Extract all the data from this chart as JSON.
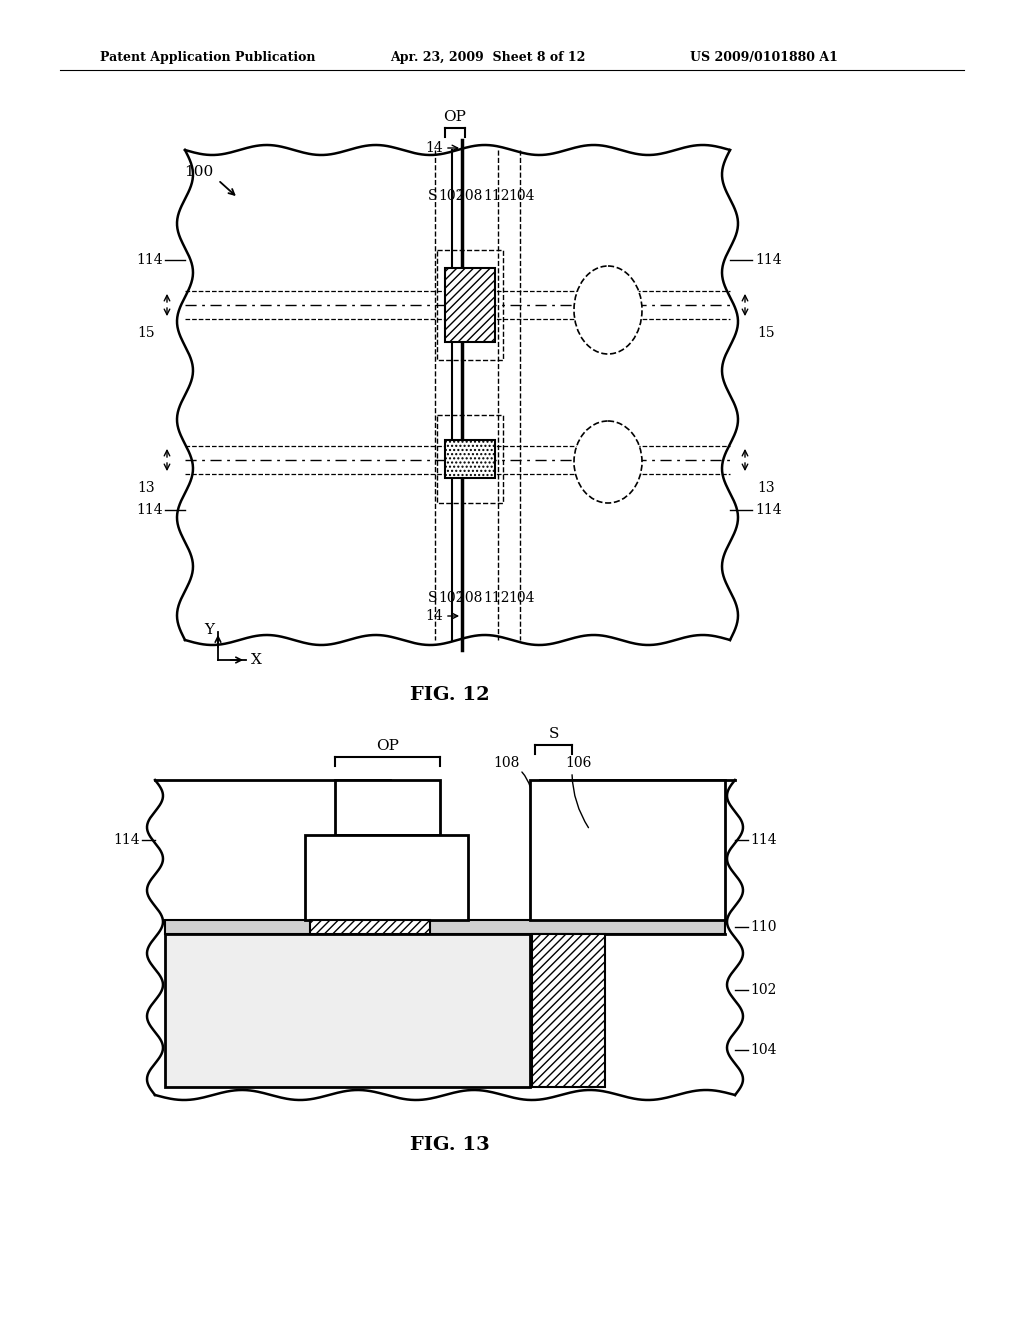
{
  "bg_color": "#ffffff",
  "line_color": "#000000",
  "header_text1": "Patent Application Publication",
  "header_text2": "Apr. 23, 2009  Sheet 8 of 12",
  "header_text3": "US 2009/0101880 A1",
  "fig12_label": "FIG. 12",
  "fig13_label": "FIG. 13"
}
